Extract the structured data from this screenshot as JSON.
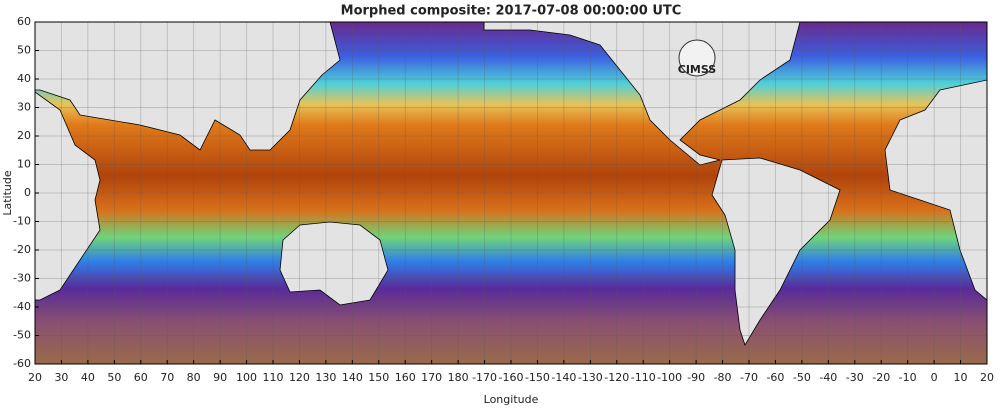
{
  "map": {
    "title": "Morphed composite: 2017-07-08 00:00:00 UTC",
    "xlabel": "Longitude",
    "ylabel": "Latitude",
    "logo": "CIMSS",
    "xlim": [
      20,
      380
    ],
    "ylim": [
      -60,
      60
    ],
    "xticks": [
      20,
      30,
      40,
      50,
      60,
      70,
      80,
      90,
      100,
      110,
      120,
      130,
      140,
      150,
      160,
      170,
      180,
      {
        "value": 190,
        "label": "-170"
      },
      {
        "value": 200,
        "label": "-160"
      },
      {
        "value": 210,
        "label": "-150"
      },
      {
        "value": 220,
        "label": "-140"
      },
      {
        "value": 230,
        "label": "-130"
      },
      {
        "value": 240,
        "label": "-120"
      },
      {
        "value": 250,
        "label": "-110"
      },
      {
        "value": 260,
        "label": "-100"
      },
      {
        "value": 270,
        "label": "-90"
      },
      {
        "value": 280,
        "label": "-80"
      },
      {
        "value": 290,
        "label": "-70"
      },
      {
        "value": 300,
        "label": "-60"
      },
      {
        "value": 310,
        "label": "-50"
      },
      {
        "value": 320,
        "label": "-40"
      },
      {
        "value": 330,
        "label": "-30"
      },
      {
        "value": 340,
        "label": "-20"
      },
      {
        "value": 350,
        "label": "-10"
      },
      {
        "value": 360,
        "label": "0"
      },
      {
        "value": 370,
        "label": "10"
      },
      {
        "value": 380,
        "label": "20"
      }
    ],
    "yticks": [
      60,
      50,
      40,
      30,
      20,
      10,
      0,
      -10,
      -20,
      -30,
      -40,
      -50,
      -60
    ],
    "grid": true
  }
}
